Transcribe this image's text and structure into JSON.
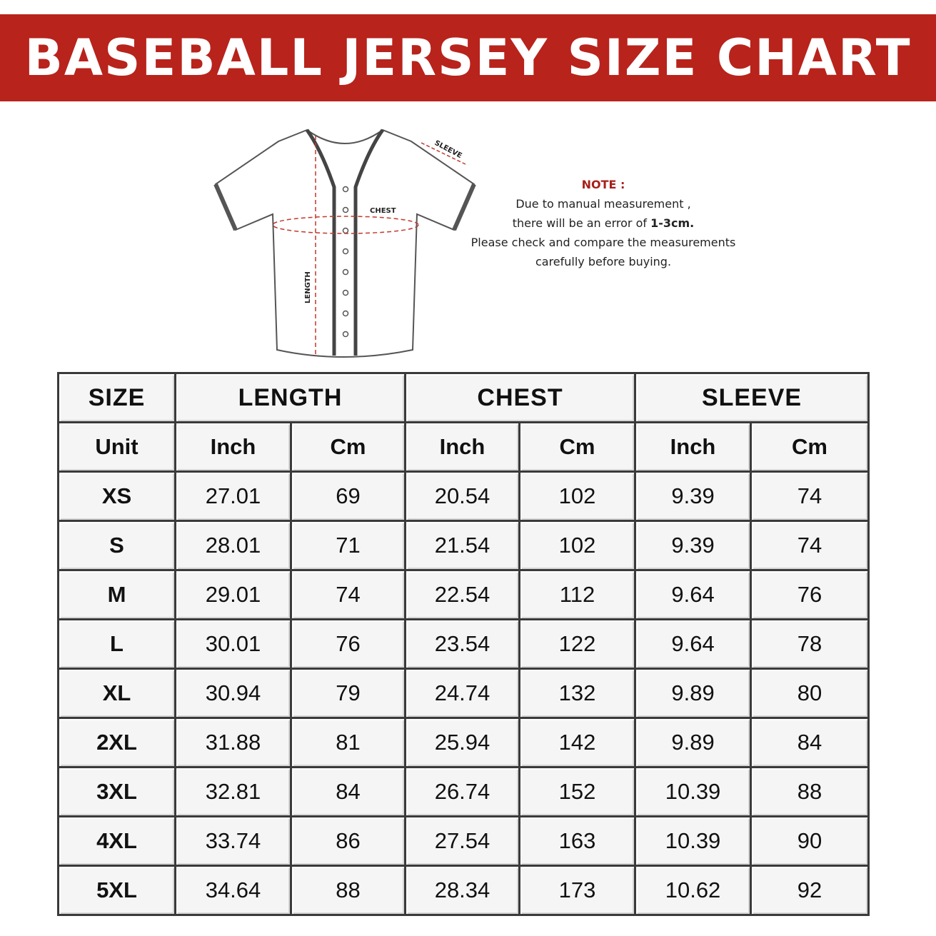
{
  "title": "BASEBALL JERSEY SIZE CHART",
  "colors": {
    "banner": "#b8231c",
    "note_title": "#a8201a"
  },
  "diagram": {
    "sleeve_label": "SLEEVE",
    "chest_label": "CHEST",
    "length_label": "LENGTH"
  },
  "note": {
    "title": "NOTE :",
    "line1": "Due to manual measurement ,",
    "line2_prefix": "there will be an error of ",
    "line2_bold": "1-3cm.",
    "line3": "Please check and compare the measurements",
    "line4": "carefully before buying."
  },
  "table": {
    "headers": {
      "size": "SIZE",
      "length": "LENGTH",
      "chest": "CHEST",
      "sleeve": "SLEEVE"
    },
    "units": {
      "unit": "Unit",
      "length_in": "Inch",
      "length_cm": "Cm",
      "chest_in": "Inch",
      "chest_cm": "Cm",
      "sleeve_in": "Inch",
      "sleeve_cm": "Cm"
    },
    "rows": [
      {
        "size": "XS",
        "length_in": "27.01",
        "length_cm": "69",
        "chest_in": "20.54",
        "chest_cm": "102",
        "sleeve_in": "9.39",
        "sleeve_cm": "74"
      },
      {
        "size": "S",
        "length_in": "28.01",
        "length_cm": "71",
        "chest_in": "21.54",
        "chest_cm": "102",
        "sleeve_in": "9.39",
        "sleeve_cm": "74"
      },
      {
        "size": "M",
        "length_in": "29.01",
        "length_cm": "74",
        "chest_in": "22.54",
        "chest_cm": "112",
        "sleeve_in": "9.64",
        "sleeve_cm": "76"
      },
      {
        "size": "L",
        "length_in": "30.01",
        "length_cm": "76",
        "chest_in": "23.54",
        "chest_cm": "122",
        "sleeve_in": "9.64",
        "sleeve_cm": "78"
      },
      {
        "size": "XL",
        "length_in": "30.94",
        "length_cm": "79",
        "chest_in": "24.74",
        "chest_cm": "132",
        "sleeve_in": "9.89",
        "sleeve_cm": "80"
      },
      {
        "size": "2XL",
        "length_in": "31.88",
        "length_cm": "81",
        "chest_in": "25.94",
        "chest_cm": "142",
        "sleeve_in": "9.89",
        "sleeve_cm": "84"
      },
      {
        "size": "3XL",
        "length_in": "32.81",
        "length_cm": "84",
        "chest_in": "26.74",
        "chest_cm": "152",
        "sleeve_in": "10.39",
        "sleeve_cm": "88"
      },
      {
        "size": "4XL",
        "length_in": "33.74",
        "length_cm": "86",
        "chest_in": "27.54",
        "chest_cm": "163",
        "sleeve_in": "10.39",
        "sleeve_cm": "90"
      },
      {
        "size": "5XL",
        "length_in": "34.64",
        "length_cm": "88",
        "chest_in": "28.34",
        "chest_cm": "173",
        "sleeve_in": "10.62",
        "sleeve_cm": "92"
      }
    ]
  }
}
